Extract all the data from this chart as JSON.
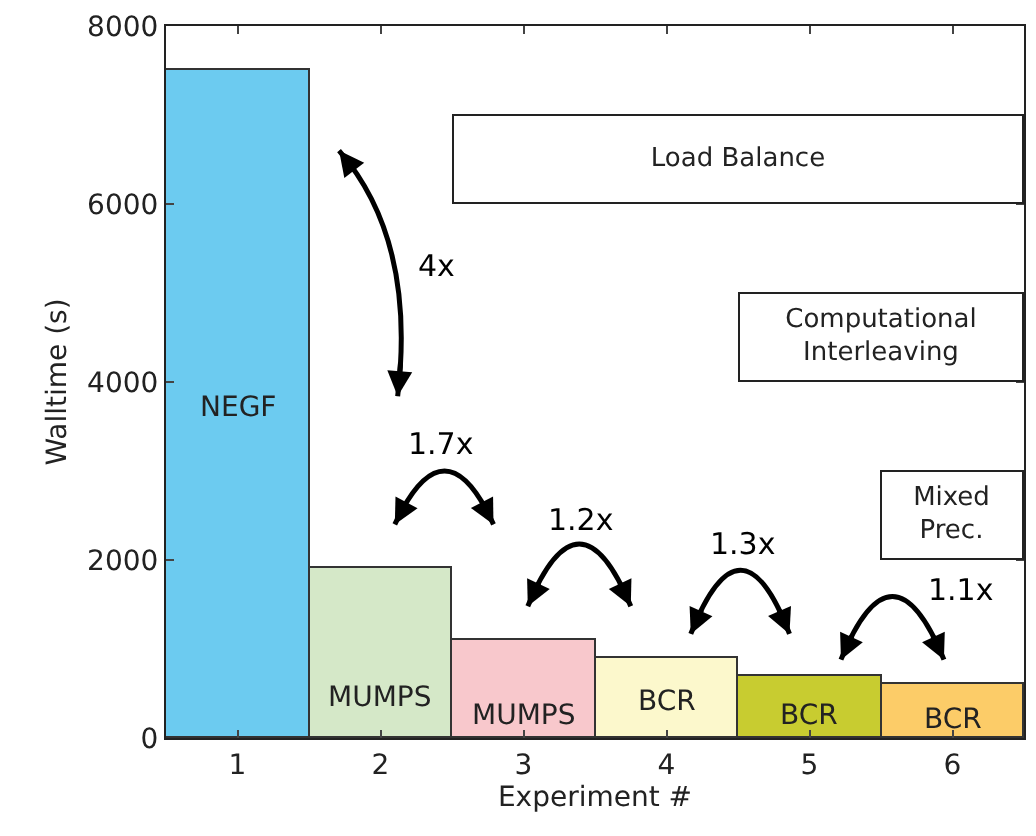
{
  "chart_data": {
    "type": "bar",
    "xlabel": "Experiment #",
    "ylabel": "Walltime (s)",
    "categories": [
      "1",
      "2",
      "3",
      "4",
      "5",
      "6"
    ],
    "values": [
      7500,
      1900,
      1100,
      900,
      700,
      600
    ],
    "colors": [
      "#6ccbf0",
      "#d5e8c8",
      "#f8c8cc",
      "#fcf8cc",
      "#c8cc30",
      "#fccc68"
    ],
    "ylim": [
      0,
      8000
    ],
    "yticks": [
      0,
      2000,
      4000,
      6000,
      8000
    ],
    "annotations": [
      "Load Balance",
      "Computational\nInterleaving",
      "Mixed\nPrec.",
      "4x",
      "1.7x",
      "1.2x",
      "1.3x",
      "1.1x",
      "NEGF",
      "MUMPS",
      "MUMPS",
      "BCR",
      "BCR",
      "BCR"
    ]
  }
}
